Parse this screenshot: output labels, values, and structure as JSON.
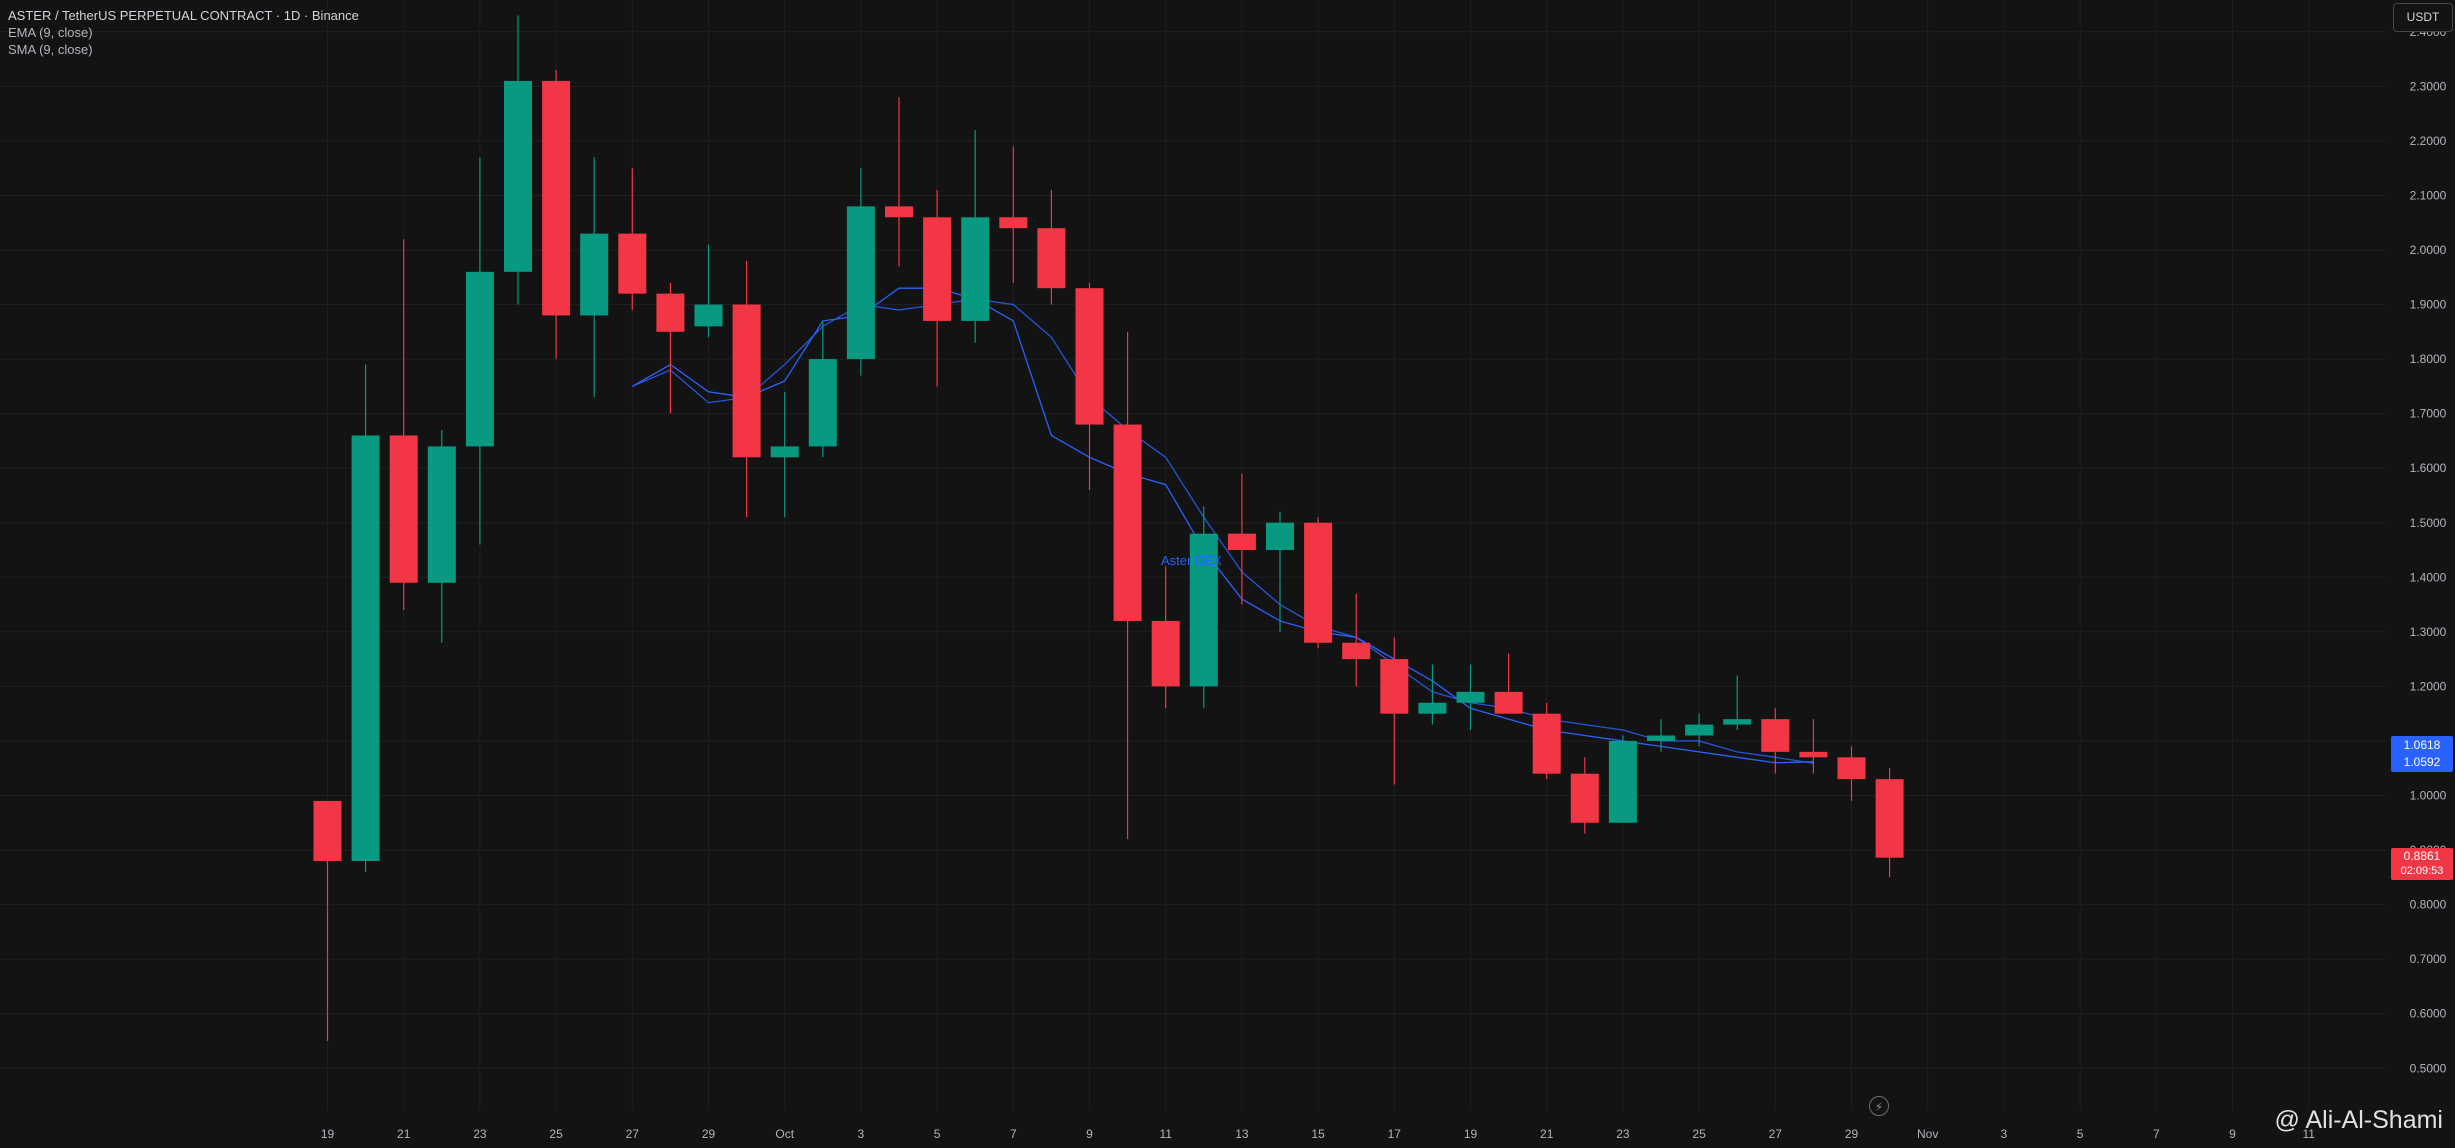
{
  "header": {
    "title": "ASTER / TetherUS PERPETUAL CONTRACT · 1D · Binance",
    "ema_label": "EMA (9, close)",
    "sma_label": "SMA (9, close)"
  },
  "currency": "USDT",
  "price_tags": {
    "ema_value": "1.0618",
    "sma_value": "1.0592",
    "last_price": "0.8861",
    "countdown": "02:09:53"
  },
  "watermark": "@ Ali-Al-Shami",
  "chart_label": "Aster DEX",
  "colors": {
    "background": "#131313",
    "up": "#089981",
    "down": "#f23645",
    "ema": "#2962ff",
    "sma": "#2962ff",
    "grid": "#1f1f1f",
    "axis_text": "#b2b5be"
  },
  "chart_data": {
    "type": "candlestick",
    "title": "ASTER / TetherUS PERPETUAL CONTRACT · 1D · Binance",
    "ylim": [
      0.45,
      2.5
    ],
    "y_ticks": [
      "0.5000",
      "0.6000",
      "0.7000",
      "0.8000",
      "0.9000",
      "1.0000",
      "1.1000",
      "1.2000",
      "1.3000",
      "1.4000",
      "1.5000",
      "1.6000",
      "1.7000",
      "1.8000",
      "1.9000",
      "2.0000",
      "2.1000",
      "2.2000",
      "2.3000",
      "2.4000"
    ],
    "x_ticks": [
      "19",
      "21",
      "23",
      "25",
      "27",
      "29",
      "Oct",
      "3",
      "5",
      "7",
      "9",
      "11",
      "13",
      "15",
      "17",
      "19",
      "21",
      "23",
      "25",
      "27",
      "29",
      "Nov",
      "3",
      "5",
      "7",
      "9",
      "11"
    ],
    "candles": [
      {
        "o": 0.99,
        "h": 0.99,
        "l": 0.55,
        "c": 0.88
      },
      {
        "o": 0.88,
        "h": 1.79,
        "l": 0.86,
        "c": 1.66
      },
      {
        "o": 1.66,
        "h": 2.02,
        "l": 1.34,
        "c": 1.39
      },
      {
        "o": 1.39,
        "h": 1.67,
        "l": 1.28,
        "c": 1.64
      },
      {
        "o": 1.64,
        "h": 2.17,
        "l": 1.46,
        "c": 1.96
      },
      {
        "o": 1.96,
        "h": 2.43,
        "l": 1.9,
        "c": 2.31
      },
      {
        "o": 2.31,
        "h": 2.33,
        "l": 1.8,
        "c": 1.88
      },
      {
        "o": 1.88,
        "h": 2.17,
        "l": 1.73,
        "c": 2.03
      },
      {
        "o": 2.03,
        "h": 2.15,
        "l": 1.89,
        "c": 1.92
      },
      {
        "o": 1.92,
        "h": 1.94,
        "l": 1.7,
        "c": 1.85
      },
      {
        "o": 1.86,
        "h": 2.01,
        "l": 1.84,
        "c": 1.9
      },
      {
        "o": 1.9,
        "h": 1.98,
        "l": 1.51,
        "c": 1.62
      },
      {
        "o": 1.62,
        "h": 1.74,
        "l": 1.51,
        "c": 1.64
      },
      {
        "o": 1.64,
        "h": 1.87,
        "l": 1.62,
        "c": 1.8
      },
      {
        "o": 1.8,
        "h": 2.15,
        "l": 1.77,
        "c": 2.08
      },
      {
        "o": 2.08,
        "h": 2.28,
        "l": 1.97,
        "c": 2.06
      },
      {
        "o": 2.06,
        "h": 2.11,
        "l": 1.75,
        "c": 1.87
      },
      {
        "o": 1.87,
        "h": 2.22,
        "l": 1.83,
        "c": 2.06
      },
      {
        "o": 2.06,
        "h": 2.19,
        "l": 1.94,
        "c": 2.04
      },
      {
        "o": 2.04,
        "h": 2.11,
        "l": 1.9,
        "c": 1.93
      },
      {
        "o": 1.93,
        "h": 1.94,
        "l": 1.56,
        "c": 1.68
      },
      {
        "o": 1.68,
        "h": 1.85,
        "l": 0.92,
        "c": 1.32
      },
      {
        "o": 1.32,
        "h": 1.42,
        "l": 1.16,
        "c": 1.2
      },
      {
        "o": 1.2,
        "h": 1.53,
        "l": 1.16,
        "c": 1.48
      },
      {
        "o": 1.48,
        "h": 1.59,
        "l": 1.35,
        "c": 1.45
      },
      {
        "o": 1.45,
        "h": 1.52,
        "l": 1.3,
        "c": 1.5
      },
      {
        "o": 1.5,
        "h": 1.51,
        "l": 1.27,
        "c": 1.28
      },
      {
        "o": 1.28,
        "h": 1.37,
        "l": 1.2,
        "c": 1.25
      },
      {
        "o": 1.25,
        "h": 1.29,
        "l": 1.02,
        "c": 1.15
      },
      {
        "o": 1.15,
        "h": 1.24,
        "l": 1.13,
        "c": 1.17
      },
      {
        "o": 1.17,
        "h": 1.24,
        "l": 1.12,
        "c": 1.19
      },
      {
        "o": 1.19,
        "h": 1.26,
        "l": 1.15,
        "c": 1.15
      },
      {
        "o": 1.15,
        "h": 1.17,
        "l": 1.03,
        "c": 1.04
      },
      {
        "o": 1.04,
        "h": 1.07,
        "l": 0.93,
        "c": 0.95
      },
      {
        "o": 0.95,
        "h": 1.11,
        "l": 0.95,
        "c": 1.1
      },
      {
        "o": 1.1,
        "h": 1.14,
        "l": 1.08,
        "c": 1.11
      },
      {
        "o": 1.11,
        "h": 1.15,
        "l": 1.09,
        "c": 1.13
      },
      {
        "o": 1.13,
        "h": 1.22,
        "l": 1.12,
        "c": 1.14
      },
      {
        "o": 1.14,
        "h": 1.16,
        "l": 1.04,
        "c": 1.08
      },
      {
        "o": 1.08,
        "h": 1.14,
        "l": 1.04,
        "c": 1.07
      },
      {
        "o": 1.07,
        "h": 1.09,
        "l": 0.99,
        "c": 1.03
      },
      {
        "o": 1.03,
        "h": 1.05,
        "l": 0.85,
        "c": 0.886
      }
    ],
    "series": [
      {
        "name": "EMA (9, close)",
        "start_index": 8,
        "values": [
          1.75,
          1.79,
          1.74,
          1.73,
          1.76,
          1.87,
          1.88,
          1.93,
          1.93,
          1.91,
          1.87,
          1.66,
          1.62,
          1.59,
          1.57,
          1.45,
          1.36,
          1.32,
          1.3,
          1.29,
          1.25,
          1.21,
          1.16,
          1.14,
          1.12,
          1.11,
          1.1,
          1.09,
          1.08,
          1.07,
          1.06,
          1.0618
        ]
      },
      {
        "name": "SMA (9, close)",
        "start_index": 8,
        "values": [
          1.75,
          1.78,
          1.72,
          1.73,
          1.79,
          1.86,
          1.9,
          1.89,
          1.9,
          1.91,
          1.9,
          1.84,
          1.73,
          1.67,
          1.62,
          1.51,
          1.41,
          1.35,
          1.31,
          1.29,
          1.24,
          1.19,
          1.17,
          1.16,
          1.14,
          1.13,
          1.12,
          1.1,
          1.1,
          1.08,
          1.07,
          1.0592
        ]
      }
    ],
    "grid": true,
    "legend_position": "top-left"
  }
}
